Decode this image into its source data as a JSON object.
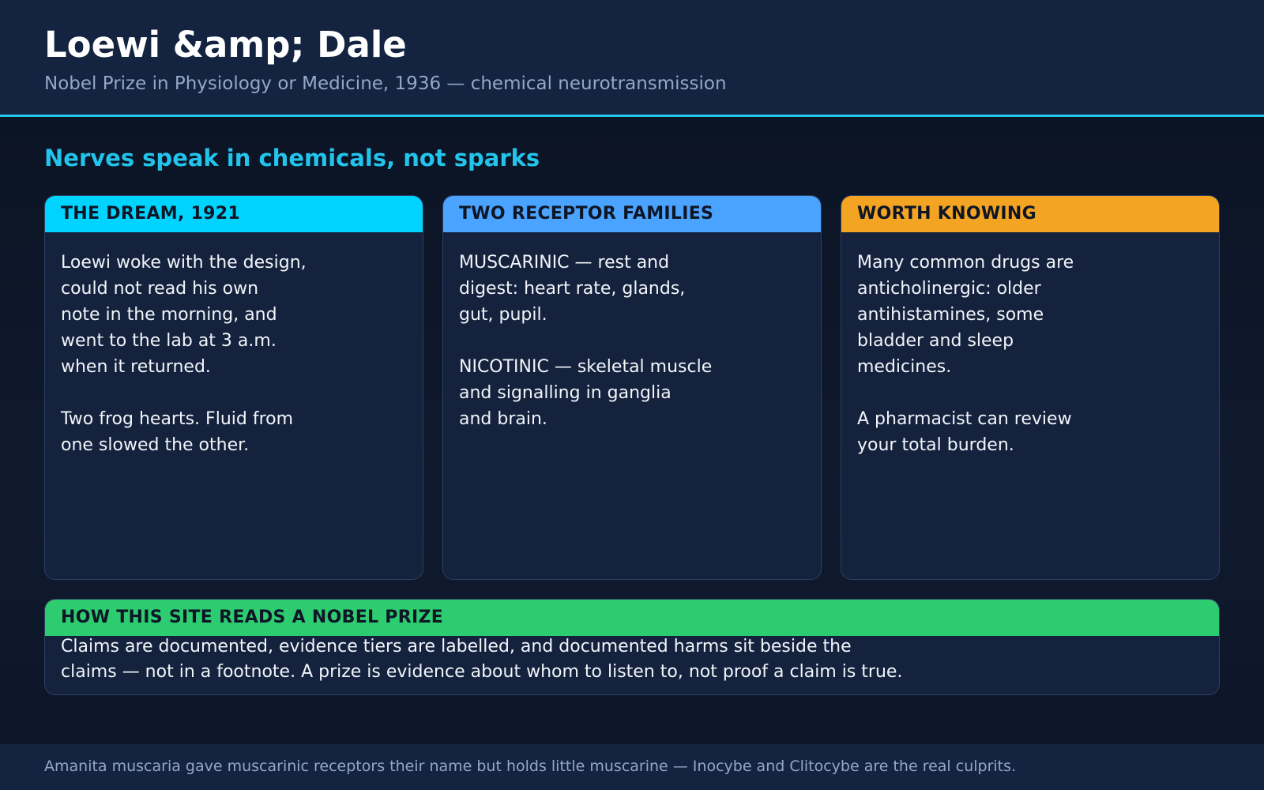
{
  "header": {
    "title": "Loewi &amp; Dale",
    "subtitle": "Nobel Prize in Physiology or Medicine, 1936 — chemical neurotransmission"
  },
  "main": {
    "heading": "Nerves speak in chemicals, not sparks",
    "cards": [
      {
        "title": "THE DREAM, 1921",
        "body": "Loewi woke with the design,\ncould not read his own\nnote in the morning, and\nwent to the lab at 3 a.m.\nwhen it returned.\n\nTwo frog hearts. Fluid from\none slowed the other."
      },
      {
        "title": "TWO RECEPTOR FAMILIES",
        "body": "MUSCARINIC — rest and\ndigest: heart rate, glands,\ngut, pupil.\n\nNICOTINIC — skeletal muscle\nand signalling in ganglia\nand brain."
      },
      {
        "title": "WORTH KNOWING",
        "body": "Many common drugs are\nanticholinergic: older\nantihistamines, some\nbladder and sleep\nmedicines.\n\nA pharmacist can review\nyour total burden."
      }
    ],
    "wide_card": {
      "title": "HOW THIS SITE READS A NOBEL PRIZE",
      "body": "Claims are documented, evidence tiers are labelled, and documented harms sit beside the\nclaims — not in a footnote. A prize is evidence about whom to listen to, not proof a claim is true."
    }
  },
  "footer": {
    "text": "Amanita muscaria gave muscarinic receptors their name but holds little muscarine — Inocybe and Clitocybe are the real culprits."
  },
  "colors": {
    "accent": "#22c4ec",
    "card1_header": "#00d4fe",
    "card2_header": "#4aa3fe",
    "card3_header": "#f4a423",
    "wide_header": "#2ecc71",
    "background": "#0d1628"
  }
}
